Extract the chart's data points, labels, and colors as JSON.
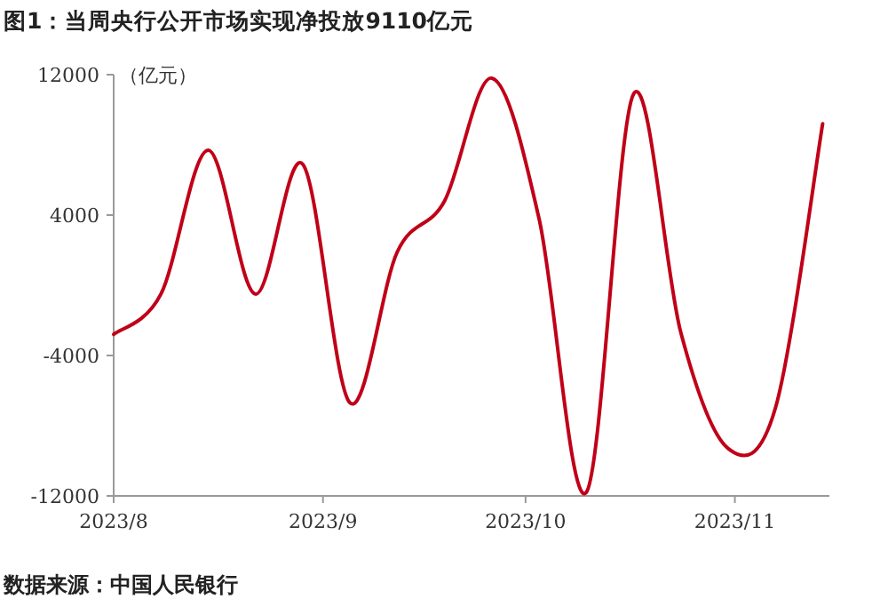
{
  "chart_data": {
    "type": "line",
    "title": "图1：当周央行公开市场实现净投放9110亿元",
    "ylabel": "（亿元）",
    "annotations": [
      "数据来源：中国人民银行"
    ],
    "x": [
      "2023-08-01",
      "2023-08-08",
      "2023-08-15",
      "2023-08-22",
      "2023-08-29",
      "2023-09-05",
      "2023-09-12",
      "2023-09-19",
      "2023-09-26",
      "2023-10-03",
      "2023-10-10",
      "2023-10-17",
      "2023-10-24",
      "2023-10-31",
      "2023-11-07",
      "2023-11-14"
    ],
    "series": [
      {
        "color": "#c00018",
        "values": [
          -2800,
          -500,
          7700,
          -500,
          6900,
          -6700,
          1900,
          4800,
          11800,
          3800,
          -11800,
          10900,
          -2700,
          -9300,
          -7000,
          9200
        ]
      }
    ],
    "xlim": [
      "2023-08-01",
      "2023-11-15"
    ],
    "xticks": [
      {
        "value": "2023-08-01",
        "label": "2023/8"
      },
      {
        "value": "2023-09-01",
        "label": "2023/9"
      },
      {
        "value": "2023-10-01",
        "label": "2023/10"
      },
      {
        "value": "2023-11-01",
        "label": "2023/11"
      }
    ],
    "ylim": [
      -12000,
      12000
    ],
    "yticks": [
      -12000,
      -4000,
      4000,
      12000
    ],
    "marker": "none",
    "line_style": "solid"
  }
}
